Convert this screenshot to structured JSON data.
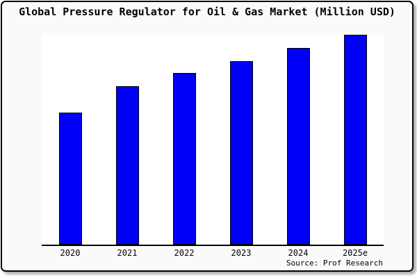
{
  "title": "Global Pressure Regulator for Oil & Gas Market (Million USD)",
  "source": "Source: Prof Research",
  "colors": {
    "bar_fill": "#0000F8",
    "bar_border": "#000000",
    "card_background": "#FAFAFA",
    "plot_background": "#FFFFFF",
    "axis_line": "#000000",
    "text": "#000000",
    "shadow": "#B4B4B4"
  },
  "chart_data": {
    "type": "bar",
    "title": "Global Pressure Regulator for Oil & Gas Market (Million USD)",
    "categories": [
      "2020",
      "2021",
      "2022",
      "2023",
      "2024",
      "2025e"
    ],
    "values": [
      100,
      120,
      130,
      139,
      149,
      159
    ],
    "value_scale": "relative index estimated from bar heights (2020 = 100); y-axis ticks not shown in chart",
    "xlabel": "",
    "ylabel": "",
    "ylim": [
      0,
      159
    ],
    "grid": false,
    "legend": false,
    "source": "Source: Prof Research"
  }
}
